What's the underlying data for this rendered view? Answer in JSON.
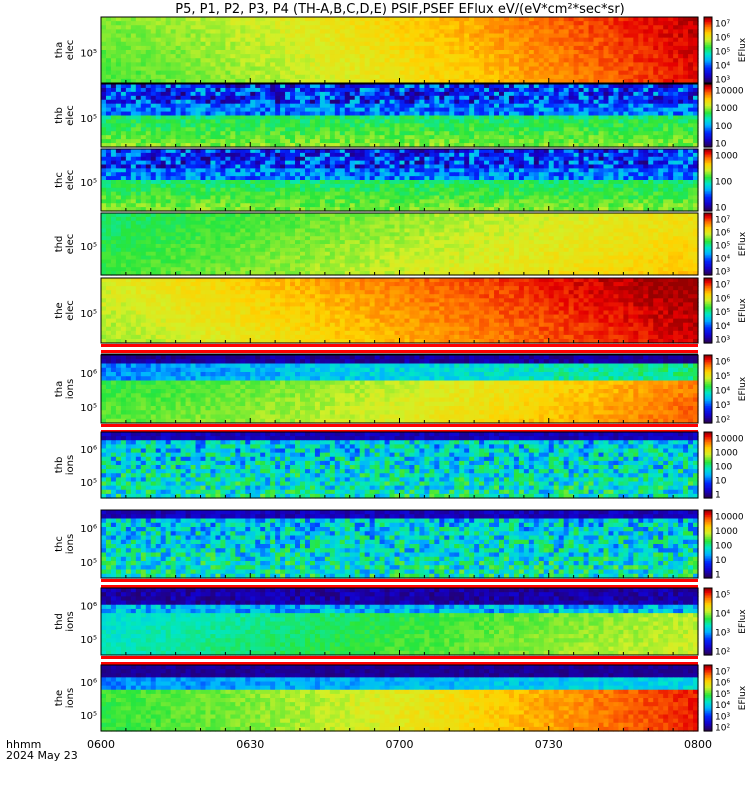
{
  "chart_data": {
    "type": "heatmap",
    "title": "P5, P1, P2, P3, P4 (TH-A,B,C,D,E) PSIF,PSEF EFlux eV/(eV*cm²*sec*sr)",
    "x_tick_labels": [
      "0600",
      "0630",
      "0700",
      "0730",
      "0800"
    ],
    "x_corner_label": [
      "hhmm",
      "2024 May 23"
    ],
    "colorbar_label": "EFlux",
    "panels": [
      {
        "name": "tha elec",
        "ytick": "10⁵",
        "ylog_range": [
          4.4,
          5.6
        ],
        "cbar_ticks": [
          "10⁷",
          "10⁶",
          "10⁵",
          "10⁴",
          "10³"
        ],
        "cbar_label": true,
        "pattern": "elec_a",
        "note_strips": false
      },
      {
        "name": "thb elec",
        "ytick": "10⁵",
        "ylog_range": [
          4.4,
          5.6
        ],
        "cbar_ticks": [
          "10000",
          "1000",
          "100",
          "10"
        ],
        "cbar_label": false,
        "pattern": "elec_noisy",
        "note_strips": false
      },
      {
        "name": "thc elec",
        "ytick": "10⁵",
        "ylog_range": [
          4.4,
          5.6
        ],
        "cbar_ticks": [
          "1000",
          "100",
          "10"
        ],
        "cbar_label": false,
        "pattern": "elec_noisy",
        "note_strips": false
      },
      {
        "name": "thd elec",
        "ytick": "10⁵",
        "ylog_range": [
          4.4,
          5.6
        ],
        "cbar_ticks": [
          "10⁷",
          "10⁶",
          "10⁵",
          "10⁴",
          "10³"
        ],
        "cbar_label": true,
        "pattern": "elec_d",
        "note_strips": false
      },
      {
        "name": "the elec",
        "ytick": "10⁵",
        "ylog_range": [
          4.4,
          5.6
        ],
        "cbar_ticks": [
          "10⁷",
          "10⁶",
          "10⁵",
          "10⁴",
          "10³"
        ],
        "cbar_label": true,
        "pattern": "elec_e",
        "note_strips": true
      },
      {
        "name": "tha ions",
        "ytick": "10⁵",
        "ytick2": "10⁶",
        "ylog_range": [
          4.6,
          6.3
        ],
        "cbar_ticks": [
          "10⁶",
          "10⁵",
          "10⁴",
          "10³",
          "10²"
        ],
        "cbar_label": true,
        "pattern": "ions_a",
        "note_strips": true
      },
      {
        "name": "thb ions",
        "ytick": "10⁵",
        "ytick2": "10⁶",
        "ylog_range": [
          4.6,
          6.3
        ],
        "cbar_ticks": [
          "10000",
          "1000",
          "100",
          "10",
          "1"
        ],
        "cbar_label": false,
        "pattern": "ions_noisy",
        "note_strips": false
      },
      {
        "name": "thc ions",
        "ytick": "10⁵",
        "ytick2": "10⁶",
        "ylog_range": [
          4.6,
          6.3
        ],
        "cbar_ticks": [
          "10000",
          "1000",
          "100",
          "10",
          "1"
        ],
        "cbar_label": false,
        "pattern": "ions_noisy",
        "note_strips": true
      },
      {
        "name": "thd ions",
        "ytick": "10⁵",
        "ytick2": "10⁶",
        "ylog_range": [
          4.6,
          6.3
        ],
        "cbar_ticks": [
          "10⁵",
          "10⁴",
          "10³",
          "10²"
        ],
        "cbar_label": true,
        "pattern": "ions_d",
        "note_strips": true
      },
      {
        "name": "the ions",
        "ytick": "10⁵",
        "ytick2": "10⁶",
        "ylog_range": [
          4.6,
          6.3
        ],
        "cbar_ticks": [
          "10⁷",
          "10⁶",
          "10⁵",
          "10⁴",
          "10³",
          "10²"
        ],
        "cbar_label": true,
        "pattern": "ions_e",
        "note_strips": false
      }
    ]
  }
}
